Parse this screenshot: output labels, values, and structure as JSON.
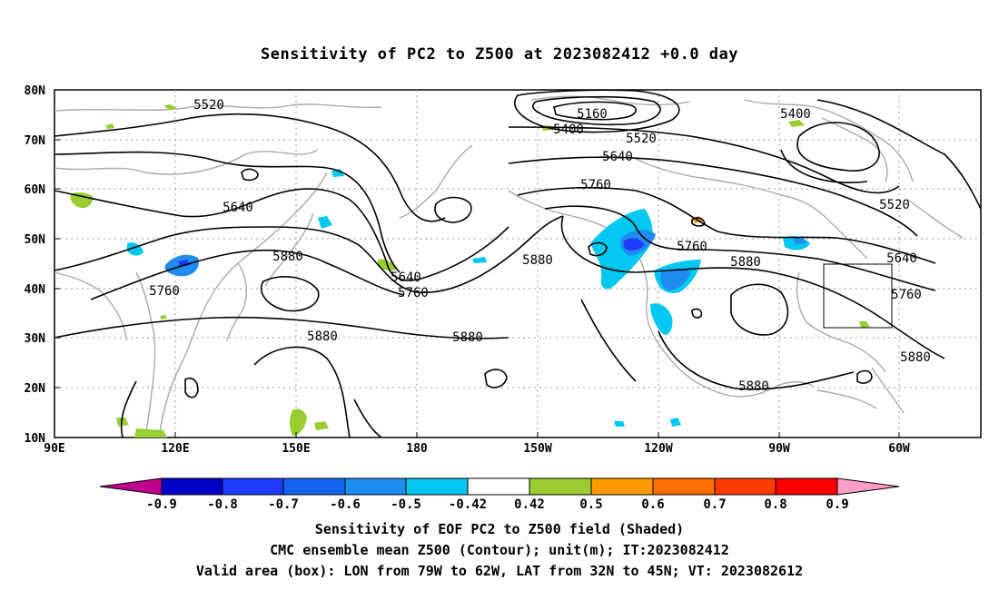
{
  "title": "Sensitivity of PC2 to Z500 at 2023082412 +0.0 day",
  "lat_labels": [
    "80N",
    "70N",
    "60N",
    "50N",
    "40N",
    "30N",
    "20N",
    "10N"
  ],
  "lon_labels": [
    "90E",
    "120E",
    "150E",
    "180",
    "150W",
    "120W",
    "90W",
    "60W"
  ],
  "contour_labels": [
    {
      "text": "5520"
    },
    {
      "text": "5160"
    },
    {
      "text": "5400"
    },
    {
      "text": "5400"
    },
    {
      "text": "5520"
    },
    {
      "text": "5640"
    },
    {
      "text": "5760"
    },
    {
      "text": "5640"
    },
    {
      "text": "5880"
    },
    {
      "text": "5760"
    },
    {
      "text": "5640"
    },
    {
      "text": "5760"
    },
    {
      "text": "5880"
    },
    {
      "text": "5760"
    },
    {
      "text": "5880"
    },
    {
      "text": "5520"
    },
    {
      "text": "5640"
    },
    {
      "text": "5760"
    },
    {
      "text": "5880"
    },
    {
      "text": "5880"
    },
    {
      "text": "5880"
    },
    {
      "text": "5880"
    }
  ],
  "colorbar": {
    "labels": [
      "-0.9",
      "-0.8",
      "-0.7",
      "-0.6",
      "-0.5",
      "-0.42",
      "0.42",
      "0.5",
      "0.6",
      "0.7",
      "0.8",
      "0.9"
    ],
    "colors": [
      "#c0008c",
      "#0000c8",
      "#1e3cff",
      "#1464f0",
      "#1e8cf0",
      "#00c8f0",
      "#ffffff",
      "#9acd32",
      "#ff9b00",
      "#ff6e00",
      "#ff3c00",
      "#ff0000",
      "#ff9ec8"
    ]
  },
  "captions": {
    "line1": "Sensitivity of EOF PC2 to Z500 field (Shaded)",
    "line2": "CMC ensemble mean Z500 (Contour); unit(m); IT:2023082412",
    "line3": "Valid area (box): LON from 79W to 62W, LAT from 32N to 45N; VT: 2023082612"
  }
}
